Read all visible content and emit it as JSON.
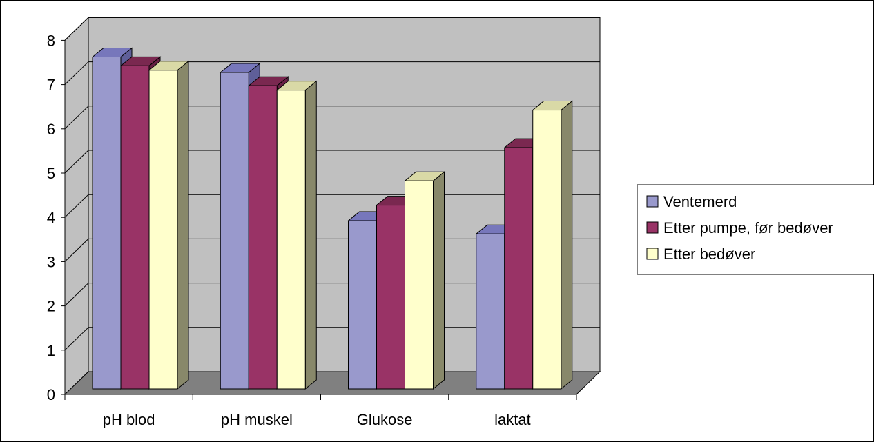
{
  "chart_data": {
    "type": "bar",
    "categories": [
      "pH blod",
      "pH muskel",
      "Glukose",
      "laktat"
    ],
    "series": [
      {
        "name": "Ventemerd",
        "values": [
          7.5,
          7.15,
          3.8,
          3.5
        ],
        "color": "#9999cc",
        "top": "#7777bb",
        "side": "#5f5f99"
      },
      {
        "name": "Etter pumpe, før bedøver",
        "values": [
          7.3,
          6.85,
          4.15,
          5.45
        ],
        "color": "#993366",
        "top": "#7a2850",
        "side": "#661f44"
      },
      {
        "name": "Etter bedøver",
        "values": [
          7.2,
          6.75,
          4.7,
          6.3
        ],
        "color": "#ffffcc",
        "top": "#d9d9a6",
        "side": "#88886a"
      }
    ],
    "ylim": [
      0,
      8
    ],
    "yticks": [
      0,
      1,
      2,
      3,
      4,
      5,
      6,
      7,
      8
    ],
    "grid": true,
    "legend": "right",
    "wall_color": "#c0c0c0",
    "floor_color": "#808080"
  }
}
